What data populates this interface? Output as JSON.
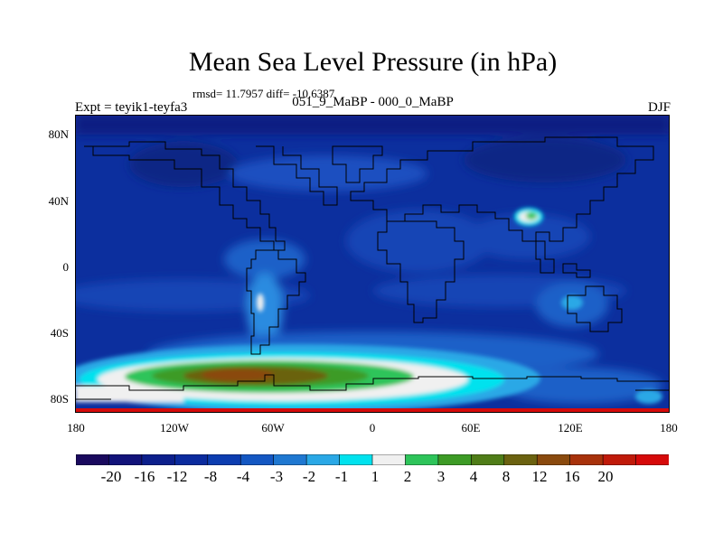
{
  "title": "Mean Sea Level Pressure (in hPa)",
  "stats": "rmsd= 11.7957 diff= -10.6387",
  "experiment": "Expt = teyik1-teyfa3",
  "period": "051_9_MaBP - 000_0_MaBP",
  "season": "DJF",
  "map": {
    "lat_labels": [
      "80N",
      "40N",
      "0",
      "40S",
      "80S"
    ],
    "lon_labels": [
      "180",
      "120W",
      "60W",
      "0",
      "60E",
      "120E",
      "180"
    ]
  },
  "colorbar": {
    "labels": [
      "-20",
      "-16",
      "-12",
      "-8",
      "-4",
      "-3",
      "-2",
      "-1",
      "1",
      "2",
      "3",
      "4",
      "8",
      "12",
      "16",
      "20"
    ],
    "colors": [
      "#1a0a5e",
      "#12137a",
      "#0c1f8c",
      "#0b2b9e",
      "#0c3db0",
      "#1457c2",
      "#1f78d1",
      "#2aa8e6",
      "#00e2ee",
      "#f0f0f0",
      "#2ec45a",
      "#3d9b26",
      "#4f7d18",
      "#6b6210",
      "#8a4a0e",
      "#a8320b",
      "#c01a0a",
      "#d60a0a"
    ]
  }
}
